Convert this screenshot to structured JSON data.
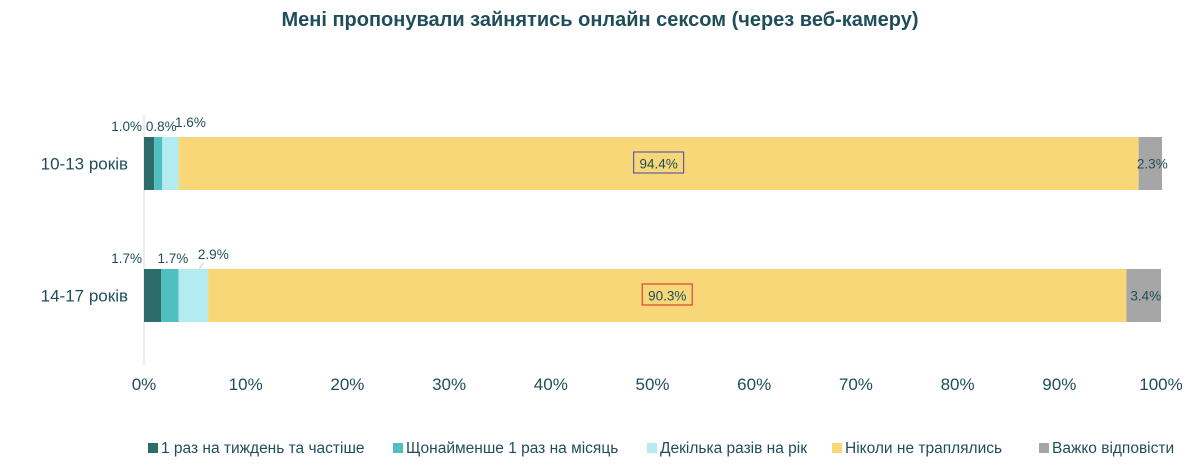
{
  "chart_data": {
    "type": "bar",
    "orientation": "horizontal",
    "stacked": true,
    "title": "Мені пропонували зайнятись онлайн сексом (через веб-камеру)",
    "categories": [
      "10-13 років",
      "14-17 років"
    ],
    "series": [
      {
        "name": "1 раз на тиждень та частіше",
        "color": "#2e6b6b",
        "values": [
          1.0,
          1.7
        ],
        "labels": [
          "1.0%",
          "1.7%"
        ]
      },
      {
        "name": "Щонайменше 1 раз на місяць",
        "color": "#4fbfbf",
        "values": [
          0.8,
          1.7
        ],
        "labels": [
          "0.8%",
          "1.7%"
        ]
      },
      {
        "name": "Декілька разів на рік",
        "color": "#b3ecf0",
        "values": [
          1.6,
          2.9
        ],
        "labels": [
          "1.6%",
          "2.9%"
        ]
      },
      {
        "name": "Ніколи не траплялись",
        "color": "#f7d778",
        "values": [
          94.4,
          90.3
        ],
        "labels": [
          "94.4%",
          "90.3%"
        ],
        "highlight_colors": [
          "#5b5fa8",
          "#d9473e"
        ]
      },
      {
        "name": "Важко відповісти",
        "color": "#a6a6a6",
        "values": [
          2.3,
          3.4
        ],
        "labels": [
          "2.3%",
          "3.4%"
        ]
      }
    ],
    "xlim": [
      0,
      100
    ],
    "x_ticks": [
      "0%",
      "10%",
      "20%",
      "30%",
      "40%",
      "50%",
      "60%",
      "70%",
      "80%",
      "90%",
      "100%"
    ],
    "grid": false,
    "legend_position": "bottom",
    "text_color": "#1f4e5a"
  }
}
